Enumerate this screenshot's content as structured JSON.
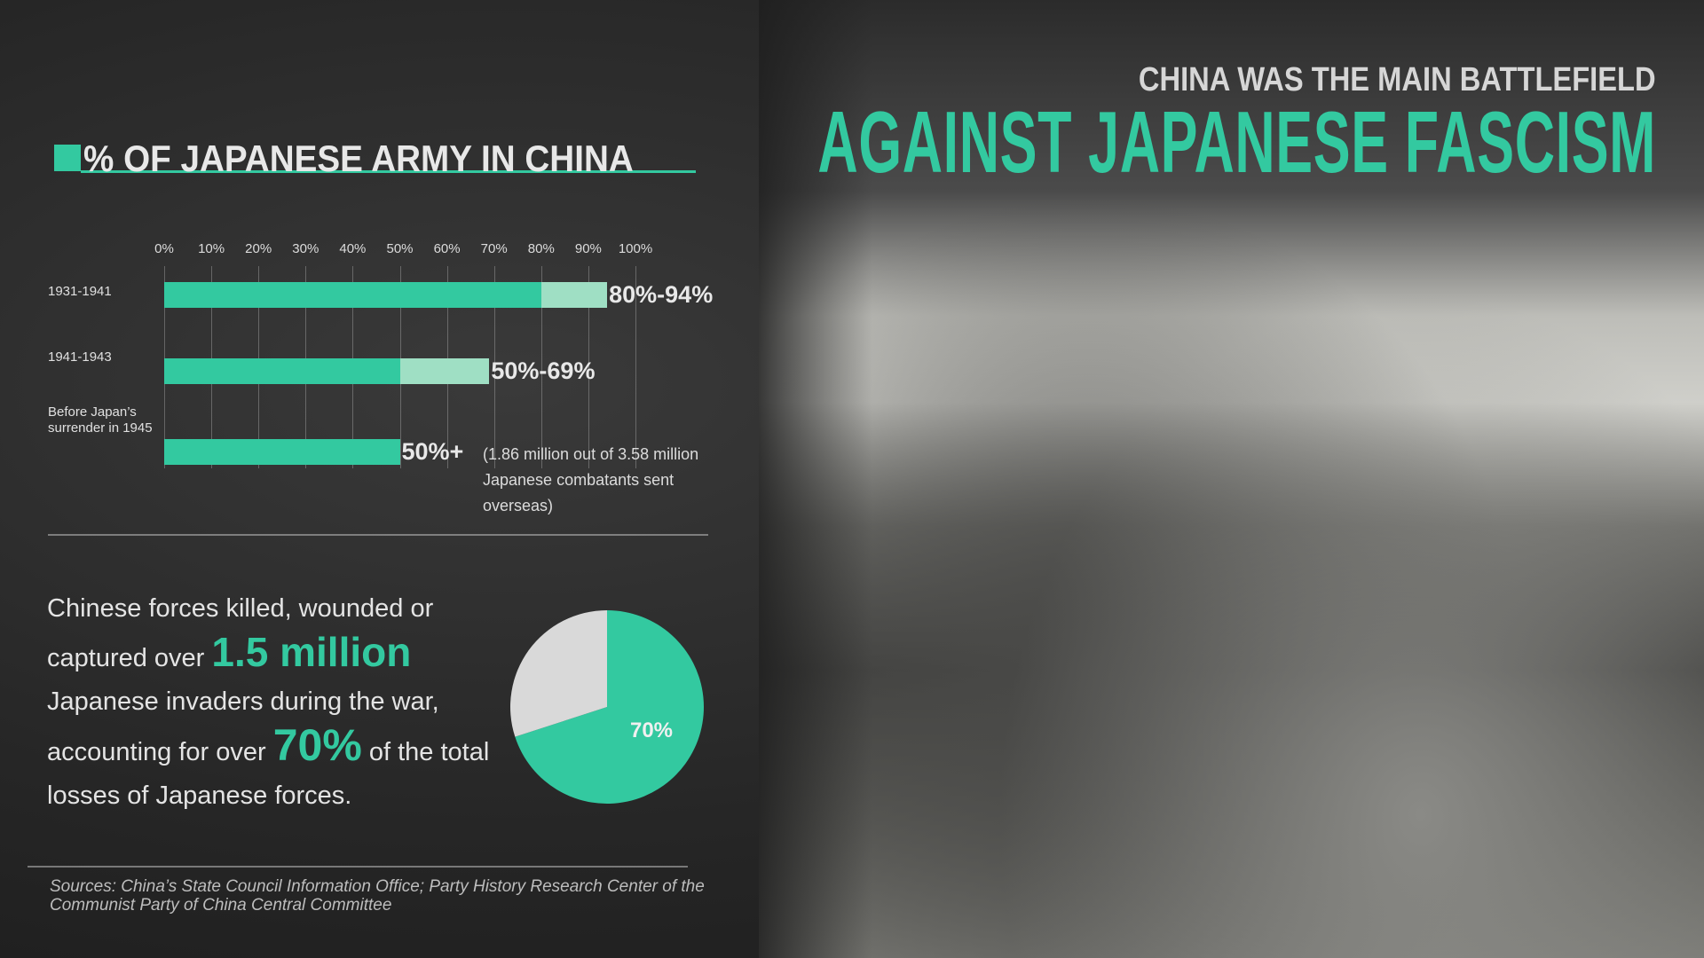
{
  "header": {
    "kicker": "CHINA WAS THE MAIN BATTLEFIELD",
    "headline": "AGAINST JAPANESE FASCISM"
  },
  "colors": {
    "accent": "#33c9a0",
    "accent_light": "#9fdfc4",
    "pie_rest": "#d9d9d9"
  },
  "chart_data": [
    {
      "type": "bar",
      "orientation": "horizontal",
      "title": "% OF JAPANESE ARMY IN CHINA",
      "xlim": [
        0,
        100
      ],
      "xticks": [
        "0%",
        "10%",
        "20%",
        "30%",
        "40%",
        "50%",
        "60%",
        "70%",
        "80%",
        "90%",
        "100%"
      ],
      "grid": true,
      "categories": [
        "1931-1941",
        "1941-1943",
        "Before Japan’s surrender in 1945"
      ],
      "range_low": [
        80,
        50,
        50
      ],
      "range_high": [
        94,
        69,
        50
      ],
      "labels": [
        "80%-94%",
        "50%-69%",
        "50%+"
      ],
      "annotation": "(1.86 million out of 3.58 million Japanese combatants sent overseas)"
    },
    {
      "type": "pie",
      "values": [
        70,
        30
      ],
      "labels": [
        "70%",
        ""
      ]
    }
  ],
  "text": {
    "p1": "Chinese forces killed, wounded or captured over ",
    "big1": "1.5 million",
    "p2": " Japanese invaders during the war, accounting for over ",
    "big2": "70%",
    "p3": " of the total losses of Japanese forces."
  },
  "sources": "Sources: China’s State Council Information Office; Party History Research Center of the Communist Party of China Central Committee"
}
